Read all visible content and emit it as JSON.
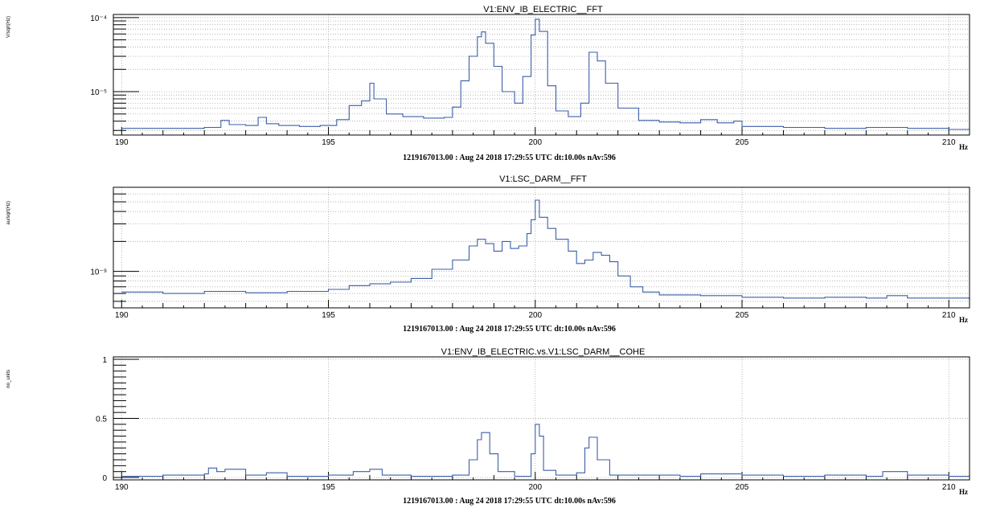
{
  "chart_data": [
    {
      "type": "line",
      "title": "V1:ENV_IB_ELECTRIC__FFT",
      "ylabel": "V/sqrt(Hz)",
      "xlabel": "Hz",
      "footer": "1219167013.00 : Aug 24 2018 17:29:55 UTC dt:10.00s nAv:596",
      "xlim": [
        189.8,
        210.5
      ],
      "ylog": true,
      "ylim": [
        2.6e-06,
        0.00011
      ],
      "x_ticks": [
        190,
        195,
        200,
        205,
        210
      ],
      "y_ticks": [
        {
          "value": 0.0001,
          "label": "10⁻⁴"
        },
        {
          "value": 1e-05,
          "label": "10⁻⁵"
        }
      ],
      "grid": true,
      "color": "#3b5fa8",
      "series": [
        {
          "x": [
            190.0,
            192.0,
            192.4,
            192.6,
            193.0,
            193.3,
            193.5,
            193.8,
            194.3,
            194.8,
            195.2,
            195.5,
            195.8,
            196.0,
            196.1,
            196.4,
            196.8,
            197.3,
            197.8,
            198.0,
            198.2,
            198.4,
            198.6,
            198.7,
            198.8,
            199.0,
            199.2,
            199.5,
            199.7,
            199.9,
            200.0,
            200.1,
            200.3,
            200.5,
            200.8,
            201.1,
            201.3,
            201.5,
            201.7,
            202.0,
            202.5,
            203.0,
            203.5,
            204.0,
            204.4,
            204.8,
            205.0,
            206.0,
            207.0,
            208.0,
            209.0,
            210.0,
            210.5
          ],
          "y": [
            3.2e-06,
            3.3e-06,
            4.1e-06,
            3.6e-06,
            3.5e-06,
            4.5e-06,
            3.7e-06,
            3.5e-06,
            3.4e-06,
            3.5e-06,
            4.2e-06,
            6.5e-06,
            7.5e-06,
            1.3e-05,
            8e-06,
            5e-06,
            4.6e-06,
            4.4e-06,
            4.5e-06,
            6.2e-06,
            1.4e-05,
            3e-05,
            5.5e-05,
            6.4e-05,
            4.5e-05,
            2.2e-05,
            1e-05,
            7e-06,
            1.6e-05,
            5.8e-05,
            9.5e-05,
            6.5e-05,
            1.2e-05,
            5.5e-06,
            4.6e-06,
            7e-06,
            3.4e-05,
            2.6e-05,
            1.3e-05,
            6e-06,
            4.1e-06,
            3.9e-06,
            3.8e-06,
            4.2e-06,
            3.8e-06,
            4e-06,
            3.4e-06,
            3.3e-06,
            3.2e-06,
            3.3e-06,
            3.2e-06,
            3.1e-06,
            3.1e-06
          ]
        }
      ]
    },
    {
      "type": "line",
      "title": "V1:LSC_DARM__FFT",
      "ylabel": "au/sqrt(Hz)",
      "xlabel": "Hz",
      "footer": "1219167013.00 : Aug 24 2018 17:29:55 UTC dt:10.00s nAv:596",
      "xlim": [
        189.8,
        210.5
      ],
      "ylog": true,
      "ylim": [
        4.3e-10,
        7e-09
      ],
      "x_ticks": [
        190,
        195,
        200,
        205,
        210
      ],
      "y_ticks": [
        {
          "value": 1e-09,
          "label": "10⁻⁹"
        }
      ],
      "grid": true,
      "color": "#3b5fa8",
      "series": [
        {
          "x": [
            190.0,
            191.0,
            192.0,
            193.0,
            194.0,
            195.0,
            195.5,
            196.0,
            196.5,
            197.0,
            197.5,
            198.0,
            198.4,
            198.6,
            198.8,
            199.0,
            199.2,
            199.4,
            199.6,
            199.8,
            199.9,
            200.0,
            200.1,
            200.3,
            200.5,
            200.8,
            201.0,
            201.2,
            201.4,
            201.6,
            201.8,
            202.0,
            202.3,
            202.6,
            203.0,
            204.0,
            205.0,
            206.0,
            207.0,
            208.0,
            208.5,
            209.0,
            210.0,
            210.5
          ],
          "y": [
            6.2e-10,
            6e-10,
            6.3e-10,
            6.1e-10,
            6.3e-10,
            6.6e-10,
            7.2e-10,
            7.5e-10,
            7.8e-10,
            8.5e-10,
            1.05e-09,
            1.3e-09,
            1.8e-09,
            2.1e-09,
            1.9e-09,
            1.6e-09,
            2e-09,
            1.7e-09,
            1.8e-09,
            2.4e-09,
            3.3e-09,
            5.2e-09,
            3.5e-09,
            2.7e-09,
            2.1e-09,
            1.6e-09,
            1.2e-09,
            1.3e-09,
            1.55e-09,
            1.45e-09,
            1.25e-09,
            9e-10,
            7e-10,
            6.2e-10,
            5.8e-10,
            5.7e-10,
            5.5e-10,
            5.4e-10,
            5.5e-10,
            5.4e-10,
            5.7e-10,
            5.4e-10,
            5.4e-10,
            5.2e-10
          ]
        }
      ]
    },
    {
      "type": "line",
      "title": "V1:ENV_IB_ELECTRIC.vs.V1:LSC_DARM__COHE",
      "ylabel": "no_units",
      "xlabel": "Hz",
      "footer": "1219167013.00 : Aug 24 2018 17:29:55 UTC dt:10.00s nAv:596",
      "xlim": [
        189.8,
        210.5
      ],
      "ylog": false,
      "ylim": [
        -0.02,
        1.02
      ],
      "x_ticks": [
        190,
        195,
        200,
        205,
        210
      ],
      "y_ticks": [
        {
          "value": 0,
          "label": "0"
        },
        {
          "value": 0.5,
          "label": "0.5"
        },
        {
          "value": 1,
          "label": "1"
        }
      ],
      "grid": true,
      "color": "#3b5fa8",
      "series": [
        {
          "x": [
            190.0,
            191.0,
            192.0,
            192.1,
            192.3,
            192.5,
            193.0,
            193.5,
            194.0,
            195.0,
            195.6,
            196.0,
            196.3,
            197.0,
            198.0,
            198.4,
            198.6,
            198.7,
            198.9,
            199.1,
            199.5,
            199.9,
            200.0,
            200.1,
            200.2,
            200.5,
            201.0,
            201.2,
            201.3,
            201.5,
            201.8,
            202.5,
            203.5,
            204.0,
            205.0,
            206.0,
            207.0,
            208.0,
            208.4,
            209.0,
            210.0,
            210.5
          ],
          "y": [
            0.01,
            0.02,
            0.03,
            0.08,
            0.05,
            0.07,
            0.02,
            0.04,
            0.01,
            0.02,
            0.05,
            0.07,
            0.02,
            0.01,
            0.02,
            0.15,
            0.32,
            0.38,
            0.2,
            0.05,
            0.01,
            0.2,
            0.45,
            0.35,
            0.06,
            0.02,
            0.04,
            0.25,
            0.34,
            0.15,
            0.02,
            0.02,
            0.01,
            0.03,
            0.02,
            0.01,
            0.02,
            0.01,
            0.05,
            0.02,
            0.01,
            0.02
          ]
        }
      ]
    }
  ]
}
